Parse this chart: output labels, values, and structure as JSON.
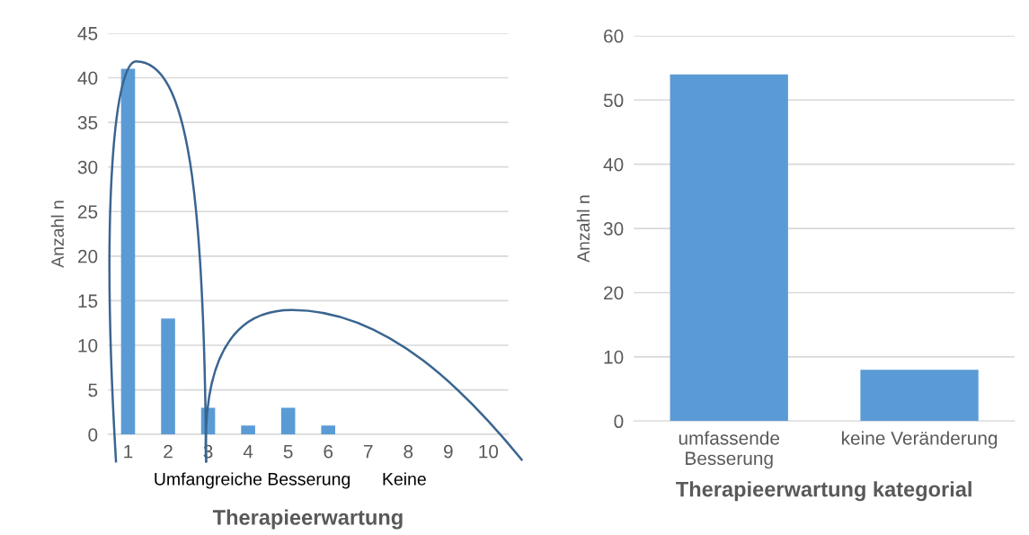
{
  "chart_data": [
    {
      "type": "bar",
      "categories": [
        "1",
        "2",
        "3",
        "4",
        "5",
        "6",
        "7",
        "8",
        "9",
        "10"
      ],
      "values": [
        41,
        13,
        3,
        1,
        3,
        1,
        0,
        0,
        0,
        0
      ],
      "color": "#5b9bd5",
      "xlabel": "Therapieerwartung",
      "ylabel": "Anzahl n",
      "ylim": [
        0,
        45
      ],
      "yticks": [
        0,
        5,
        10,
        15,
        20,
        25,
        30,
        35,
        40,
        45
      ],
      "grid": "y",
      "annotations": [
        "Umfangreiche Besserung",
        "Keine"
      ]
    },
    {
      "type": "bar",
      "categories": [
        "umfassende\nBesserung",
        "keine Veränderung"
      ],
      "values": [
        54,
        8
      ],
      "color": "#5b9bd5",
      "xlabel": "Therapieerwartung kategorial",
      "ylabel": "Anzahl n",
      "ylim": [
        0,
        60
      ],
      "yticks": [
        0,
        10,
        20,
        30,
        40,
        50,
        60
      ],
      "grid": "y"
    }
  ]
}
